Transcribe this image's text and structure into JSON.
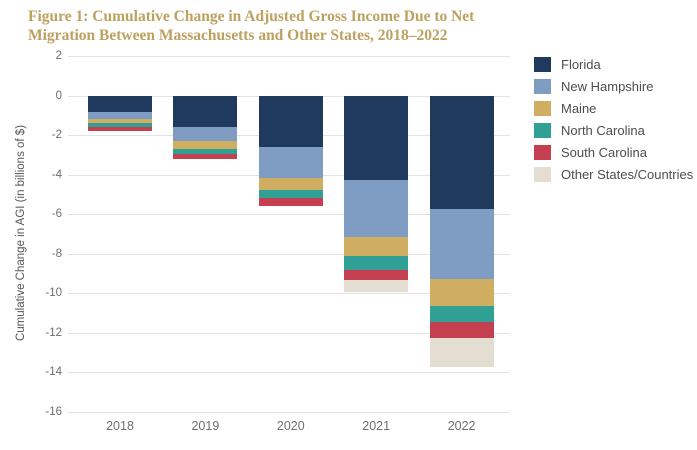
{
  "title": "Figure 1: Cumulative Change in Adjusted Gross Income Due to Net Migration Between Massachusetts and Other States, 2018–2022",
  "title_color": "#bda15e",
  "chart_data": {
    "type": "bar",
    "stacked": true,
    "title": "Figure 1: Cumulative Change in Adjusted Gross Income Due to Net Migration Between Massachusetts and Other States, 2018–2022",
    "xlabel": "",
    "ylabel": "Cumulative Change in AGI (in billions of $)",
    "categories": [
      "2018",
      "2019",
      "2020",
      "2021",
      "2022"
    ],
    "series": [
      {
        "name": "Florida",
        "color": "#1f3a5c",
        "values": [
          -0.85,
          -1.6,
          -2.6,
          -4.25,
          -5.75
        ]
      },
      {
        "name": "New Hampshire",
        "color": "#7f9cc3",
        "values": [
          -0.35,
          -0.7,
          -1.55,
          -2.9,
          -3.55
        ]
      },
      {
        "name": "Maine",
        "color": "#cfad61",
        "values": [
          -0.2,
          -0.4,
          -0.65,
          -0.95,
          -1.35
        ]
      },
      {
        "name": "North Carolina",
        "color": "#2fa093",
        "values": [
          -0.2,
          -0.25,
          -0.4,
          -0.7,
          -0.8
        ]
      },
      {
        "name": "South Carolina",
        "color": "#c43f50",
        "values": [
          -0.2,
          -0.25,
          -0.4,
          -0.55,
          -0.8
        ]
      },
      {
        "name": "Other States/Countries",
        "color": "#e3ddd2",
        "values": [
          0,
          0,
          0,
          -0.6,
          -1.5
        ]
      }
    ],
    "totals_cumulative": [
      -1.8,
      -3.2,
      -5.6,
      -9.95,
      -13.75
    ],
    "ylim": [
      -16,
      2
    ],
    "ytick_step": 2,
    "yticks": [
      2,
      0,
      -2,
      -4,
      -6,
      -8,
      -10,
      -12,
      -14,
      -16
    ],
    "grid": true,
    "gridline_color": "#e2e2e2",
    "legend_position": "right"
  }
}
